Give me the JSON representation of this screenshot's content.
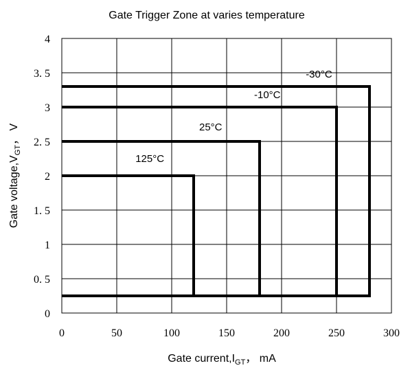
{
  "chart_data": {
    "type": "line",
    "title": "Gate Trigger Zone at varies temperature",
    "xlabel": {
      "prefix": "Gate current,I",
      "sub": "GT",
      "suffix": "，  mA"
    },
    "ylabel": {
      "prefix": "Gate voltage,V",
      "sub": "GT",
      "suffix": "，  V"
    },
    "xlim": [
      0,
      300
    ],
    "ylim": [
      0,
      4
    ],
    "xticks": [
      0,
      50,
      100,
      150,
      200,
      250,
      300
    ],
    "yticks": [
      0,
      0.5,
      1,
      1.5,
      2,
      2.5,
      3,
      3.5,
      4
    ],
    "xtick_labels": [
      "0",
      "50",
      "100",
      "150",
      "200",
      "250",
      "300"
    ],
    "ytick_labels": [
      "0",
      "0. 5",
      "1",
      "1. 5",
      "2",
      "2. 5",
      "3",
      "3. 5",
      "4"
    ],
    "grid": true,
    "series": [
      {
        "name": "-30°C",
        "x": [
          0,
          280,
          280,
          0
        ],
        "y": [
          3.3,
          3.3,
          0.25,
          0.25
        ],
        "label_x": 222,
        "label_y": 3.43
      },
      {
        "name": "-10°C",
        "x": [
          0,
          250,
          250,
          0
        ],
        "y": [
          3.0,
          3.0,
          0.25,
          0.25
        ],
        "label_x": 175,
        "label_y": 3.13
      },
      {
        "name": "25°C",
        "x": [
          0,
          180,
          180,
          0
        ],
        "y": [
          2.5,
          2.5,
          0.25,
          0.25
        ],
        "label_x": 125,
        "label_y": 2.66
      },
      {
        "name": "125°C",
        "x": [
          0,
          120,
          120,
          0
        ],
        "y": [
          2.0,
          2.0,
          0.25,
          0.25
        ],
        "label_x": 67,
        "label_y": 2.2
      }
    ],
    "line_color": "#000000",
    "grid_color": "#000000"
  }
}
